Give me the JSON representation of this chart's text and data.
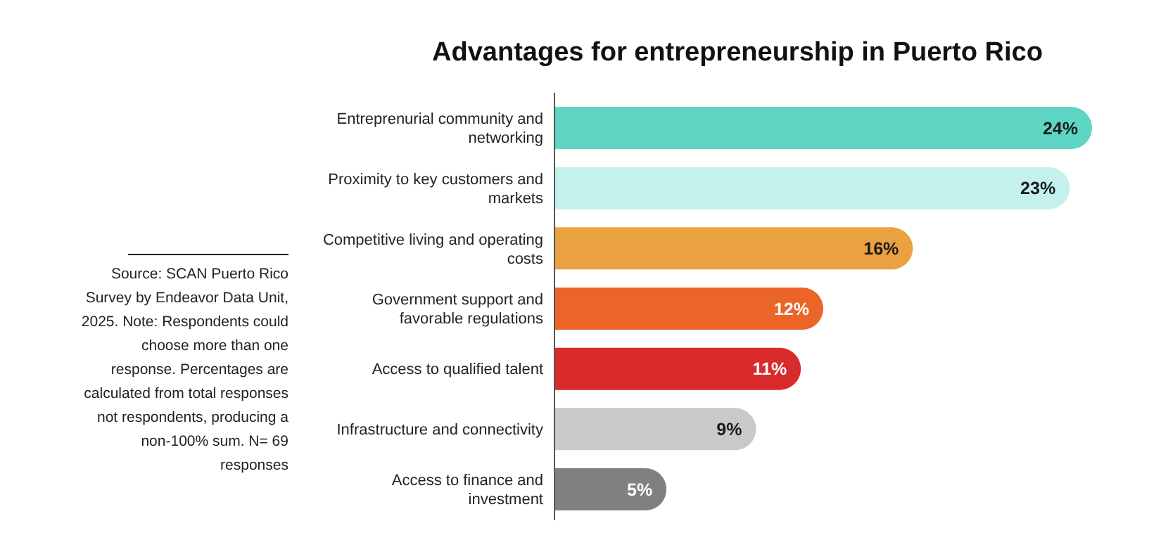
{
  "chart_data": {
    "type": "bar",
    "orientation": "horizontal",
    "title": "Advantages for entrepreneurship in Puerto Rico",
    "categories": [
      "Entreprenurial community and networking",
      "Proximity to key customers and markets",
      "Competitive living and operating costs",
      "Government support and favorable regulations",
      "Access to qualified talent",
      "Infrastructure and connectivity",
      "Access to finance and investment"
    ],
    "values": [
      24,
      23,
      16,
      12,
      11,
      9,
      5
    ],
    "value_labels": [
      "24%",
      "23%",
      "16%",
      "12%",
      "11%",
      "9%",
      "5%"
    ],
    "colors": [
      "#5fd6c4",
      "#c4f1ee",
      "#eaa140",
      "#eb6428",
      "#d92b2b",
      "#c9c9c9",
      "#808080"
    ],
    "annotations": [
      "Source: SCAN Puerto Rico Survey by Endeavor Data Unit, 2025. Note: Respondents could choose more than one response. Percentages are calculated from total responses not respondents, producing  a non-100% sum. N= 69 responses"
    ]
  }
}
